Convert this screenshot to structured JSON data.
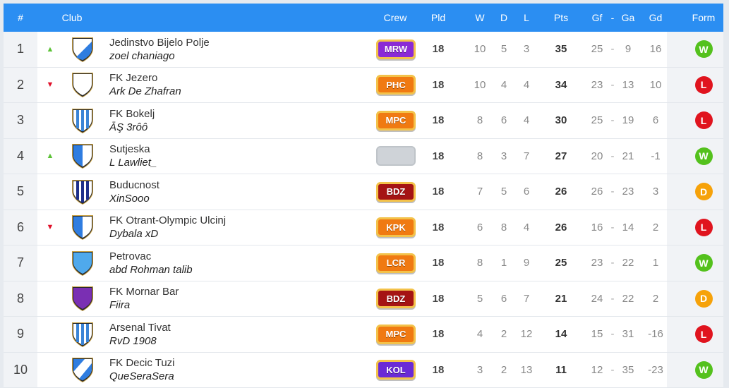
{
  "header": {
    "rank": "#",
    "club": "Club",
    "crew": "Crew",
    "pld": "Pld",
    "w": "W",
    "d": "D",
    "l": "L",
    "pts": "Pts",
    "gf": "Gf",
    "dash": "-",
    "ga": "Ga",
    "gd": "Gd",
    "form": "Form"
  },
  "colors": {
    "header_bg": "#2b8ef2",
    "form_W": "#54c11d",
    "form_L": "#e0141e",
    "form_D": "#f6a20a"
  },
  "rows": [
    {
      "rank": "1",
      "move": "up",
      "club": "Jedinstvo Bijelo Polje",
      "manager": "zoel chaniago",
      "shield": "white-blue-diagonal",
      "crew": "MRW",
      "crew_color": "#8a2ad6",
      "pld": "18",
      "w": "10",
      "d": "5",
      "l": "3",
      "pts": "35",
      "gf": "25",
      "ga": "9",
      "gd": "16",
      "form": "W"
    },
    {
      "rank": "2",
      "move": "down",
      "club": "FK Jezero",
      "manager": "Ark De Zhafran",
      "shield": "white-plain",
      "crew": "PHC",
      "crew_color": "#f07a12",
      "pld": "18",
      "w": "10",
      "d": "4",
      "l": "4",
      "pts": "34",
      "gf": "23",
      "ga": "13",
      "gd": "10",
      "form": "L"
    },
    {
      "rank": "3",
      "move": "",
      "club": "FK Bokelj",
      "manager": "ĀŞ 3rôô",
      "shield": "blue-white-stripes",
      "crew": "MPC",
      "crew_color": "#f07a12",
      "pld": "18",
      "w": "8",
      "d": "6",
      "l": "4",
      "pts": "30",
      "gf": "25",
      "ga": "19",
      "gd": "6",
      "form": "L"
    },
    {
      "rank": "4",
      "move": "up",
      "club": "Sutjeska",
      "manager": "L Lawliet_",
      "shield": "blue-white-half",
      "crew": "",
      "crew_color": "",
      "pld": "18",
      "w": "8",
      "d": "3",
      "l": "7",
      "pts": "27",
      "gf": "20",
      "ga": "21",
      "gd": "-1",
      "form": "W"
    },
    {
      "rank": "5",
      "move": "",
      "club": "Buducnost",
      "manager": "XinSooo",
      "shield": "navy-white-stripes",
      "crew": "BDZ",
      "crew_color": "#a51414",
      "pld": "18",
      "w": "7",
      "d": "5",
      "l": "6",
      "pts": "26",
      "gf": "26",
      "ga": "23",
      "gd": "3",
      "form": "D"
    },
    {
      "rank": "6",
      "move": "down",
      "club": "FK Otrant-Olympic Ulcinj",
      "manager": "Dybala xD",
      "shield": "blue-white-half",
      "crew": "KPK",
      "crew_color": "#f07a12",
      "pld": "18",
      "w": "6",
      "d": "8",
      "l": "4",
      "pts": "26",
      "gf": "16",
      "ga": "14",
      "gd": "2",
      "form": "L"
    },
    {
      "rank": "7",
      "move": "",
      "club": "Petrovac",
      "manager": "abd Rohman talib",
      "shield": "light-blue-plain",
      "crew": "LCR",
      "crew_color": "#f07a12",
      "pld": "18",
      "w": "8",
      "d": "1",
      "l": "9",
      "pts": "25",
      "gf": "23",
      "ga": "22",
      "gd": "1",
      "form": "W"
    },
    {
      "rank": "8",
      "move": "",
      "club": "FK Mornar Bar",
      "manager": "Fiira",
      "shield": "purple-plain",
      "crew": "BDZ",
      "crew_color": "#a51414",
      "pld": "18",
      "w": "5",
      "d": "6",
      "l": "7",
      "pts": "21",
      "gf": "24",
      "ga": "22",
      "gd": "2",
      "form": "D"
    },
    {
      "rank": "9",
      "move": "",
      "club": "Arsenal Tivat",
      "manager": "RvD 1908",
      "shield": "blue-white-stripes",
      "crew": "MPC",
      "crew_color": "#f07a12",
      "pld": "18",
      "w": "4",
      "d": "2",
      "l": "12",
      "pts": "14",
      "gf": "15",
      "ga": "31",
      "gd": "-16",
      "form": "L"
    },
    {
      "rank": "10",
      "move": "",
      "club": "FK Decic Tuzi",
      "manager": "QueSeraSera",
      "shield": "blue-white-diagonal",
      "crew": "KOL",
      "crew_color": "#6a2ad6",
      "pld": "18",
      "w": "3",
      "d": "2",
      "l": "13",
      "pts": "11",
      "gf": "12",
      "ga": "35",
      "gd": "-23",
      "form": "W"
    }
  ]
}
